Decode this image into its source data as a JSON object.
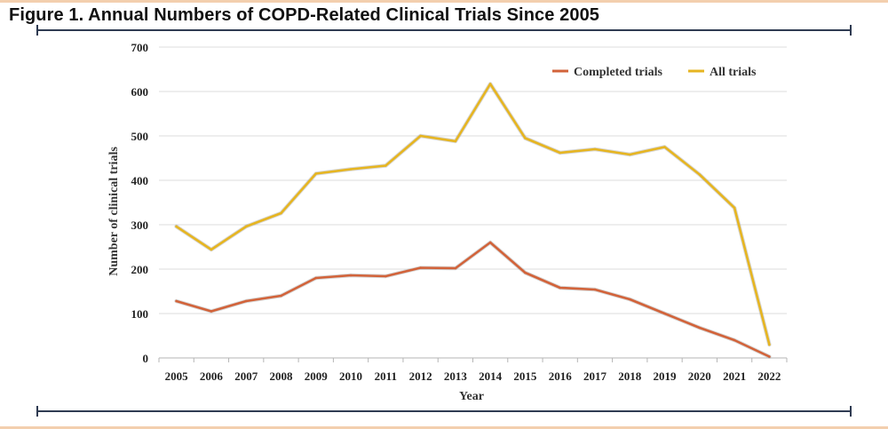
{
  "figure": {
    "title": "Figure 1. Annual Numbers of COPD-Related Clinical Trials Since 2005"
  },
  "chart_data": {
    "type": "line",
    "title": "",
    "xlabel": "Year",
    "ylabel": "Number of clinical trials",
    "ylim": [
      0,
      700
    ],
    "yticks": [
      0,
      100,
      200,
      300,
      400,
      500,
      600,
      700
    ],
    "grid": true,
    "legend_position": "top-right",
    "categories": [
      "2005",
      "2006",
      "2007",
      "2008",
      "2009",
      "2010",
      "2011",
      "2012",
      "2013",
      "2014",
      "2015",
      "2016",
      "2017",
      "2018",
      "2019",
      "2020",
      "2021",
      "2022"
    ],
    "series": [
      {
        "name": "Completed trials",
        "color": "#d2633a",
        "values": [
          128,
          105,
          128,
          140,
          180,
          186,
          184,
          203,
          202,
          260,
          192,
          158,
          154,
          132,
          100,
          68,
          40,
          3
        ]
      },
      {
        "name": "All trials",
        "color": "#e6b521",
        "values": [
          296,
          244,
          296,
          326,
          415,
          425,
          433,
          500,
          488,
          617,
          495,
          462,
          470,
          458,
          475,
          413,
          338,
          30
        ]
      }
    ]
  }
}
